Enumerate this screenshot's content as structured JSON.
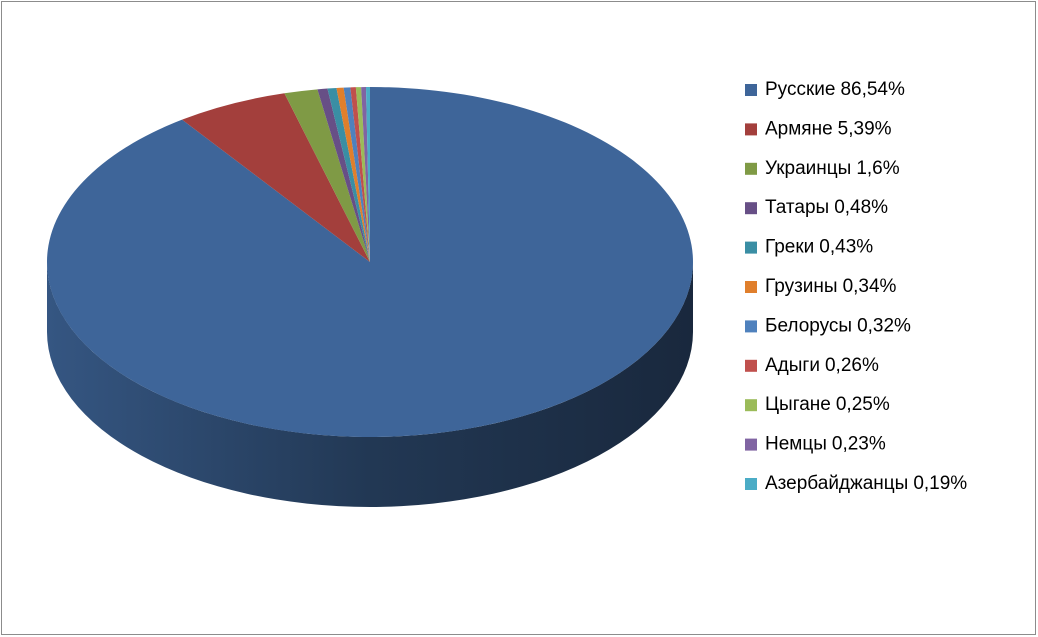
{
  "chart_data": {
    "type": "pie",
    "three_d": true,
    "categories": [
      "Русские",
      "Армяне",
      "Украинцы",
      "Татары",
      "Греки",
      "Грузины",
      "Белорусы",
      "Адыги",
      "Цыгане",
      "Немцы",
      "Азербайджанцы"
    ],
    "values": [
      86.54,
      5.39,
      1.6,
      0.48,
      0.43,
      0.34,
      0.32,
      0.26,
      0.25,
      0.23,
      0.19
    ],
    "value_labels": [
      "86,54%",
      "5,39%",
      "1,6%",
      "0,48%",
      "0,43%",
      "0,34%",
      "0,32%",
      "0,26%",
      "0,25%",
      "0,23%",
      "0,19%"
    ],
    "colors": [
      "#3e6599",
      "#a33f3c",
      "#7f9a45",
      "#674f86",
      "#3a8ea4",
      "#e07f2c",
      "#4f81bd",
      "#c0504d",
      "#9bbb59",
      "#8064a2",
      "#4bacc6"
    ],
    "legend": "right"
  }
}
